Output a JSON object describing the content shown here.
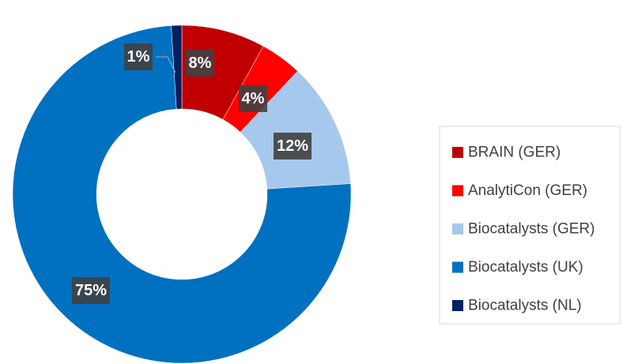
{
  "chart_data": {
    "type": "donut",
    "categories": [
      "BRAIN (GER)",
      "AnalytiCon (GER)",
      "Biocatalysts (GER)",
      "Biocatalysts (UK)",
      "Biocatalysts (NL)"
    ],
    "values": [
      8,
      4,
      12,
      75,
      1
    ],
    "value_labels": [
      "8%",
      "4%",
      "12%",
      "75%",
      "1%"
    ],
    "colors": [
      "#c00000",
      "#ff0000",
      "#a6c8ec",
      "#0070c0",
      "#002060"
    ],
    "legend": "right"
  }
}
